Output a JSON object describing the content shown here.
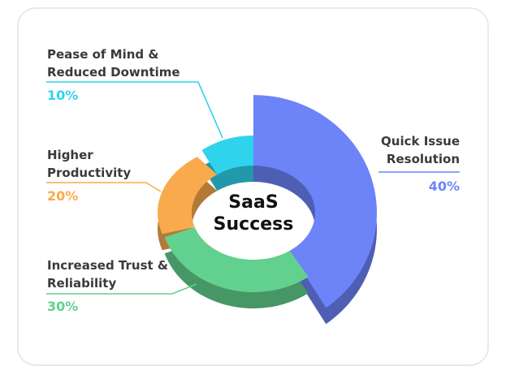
{
  "chart_data": {
    "type": "donut",
    "center_label": "SaaS Success",
    "categories": [
      "Quick Issue Resolution",
      "Increased Trust & Reliability",
      "Higher Productivity",
      "Pease of Mind & Reduced Downtime"
    ],
    "values": [
      40,
      30,
      20,
      10
    ],
    "value_labels": [
      "40%",
      "30%",
      "20%",
      "10%"
    ],
    "colors": [
      "#6d84f8",
      "#62d08e",
      "#f8aa4d",
      "#2fd3ec"
    ]
  }
}
